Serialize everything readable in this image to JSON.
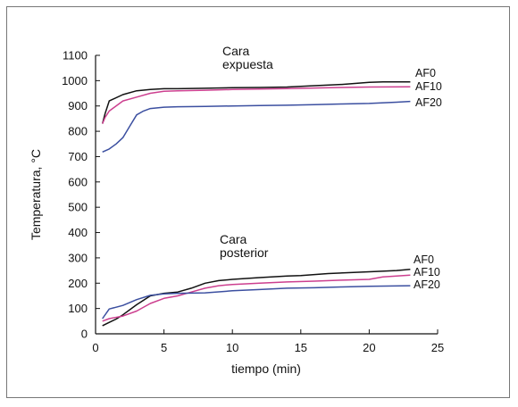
{
  "chart_data": {
    "type": "line",
    "title": "",
    "xlabel": "tiempo (min)",
    "ylabel": "Temperatura, °C",
    "xlim": [
      0,
      25
    ],
    "ylim": [
      0,
      1100
    ],
    "xticks": [
      0,
      5,
      10,
      15,
      20,
      25
    ],
    "yticks": [
      0,
      100,
      200,
      300,
      400,
      500,
      600,
      700,
      800,
      900,
      1000,
      1100
    ],
    "grid": false,
    "legend": "inline labels at line ends",
    "annotations": [
      {
        "lines": [
          "Cara",
          "expuesta"
        ],
        "group": "exposed"
      },
      {
        "lines": [
          "Cara",
          "posterior"
        ],
        "group": "posterior"
      }
    ],
    "series": [
      {
        "name": "AF0",
        "group": "exposed",
        "color": "#111111",
        "points": [
          [
            0.5,
            830
          ],
          [
            0.7,
            870
          ],
          [
            1,
            920
          ],
          [
            2,
            945
          ],
          [
            3,
            960
          ],
          [
            4,
            965
          ],
          [
            5,
            968
          ],
          [
            6,
            968
          ],
          [
            8,
            970
          ],
          [
            10,
            972
          ],
          [
            12,
            973
          ],
          [
            14,
            975
          ],
          [
            16,
            980
          ],
          [
            18,
            985
          ],
          [
            20,
            993
          ],
          [
            21,
            995
          ],
          [
            23,
            995
          ]
        ]
      },
      {
        "name": "AF10",
        "group": "exposed",
        "color": "#cc3f8f",
        "points": [
          [
            0.5,
            830
          ],
          [
            0.7,
            855
          ],
          [
            1,
            880
          ],
          [
            2,
            920
          ],
          [
            3,
            935
          ],
          [
            4,
            950
          ],
          [
            5,
            958
          ],
          [
            6,
            960
          ],
          [
            8,
            962
          ],
          [
            10,
            965
          ],
          [
            12,
            967
          ],
          [
            14,
            969
          ],
          [
            16,
            971
          ],
          [
            18,
            973
          ],
          [
            20,
            975
          ],
          [
            23,
            976
          ]
        ]
      },
      {
        "name": "AF20",
        "group": "exposed",
        "color": "#3b4fa0",
        "points": [
          [
            0.5,
            718
          ],
          [
            1,
            730
          ],
          [
            1.5,
            750
          ],
          [
            2,
            775
          ],
          [
            2.5,
            820
          ],
          [
            3,
            865
          ],
          [
            3.5,
            880
          ],
          [
            4,
            890
          ],
          [
            5,
            895
          ],
          [
            6,
            897
          ],
          [
            8,
            898
          ],
          [
            10,
            900
          ],
          [
            12,
            902
          ],
          [
            14,
            903
          ],
          [
            16,
            905
          ],
          [
            18,
            908
          ],
          [
            20,
            910
          ],
          [
            22,
            915
          ],
          [
            23,
            918
          ]
        ]
      },
      {
        "name": "AF0",
        "group": "posterior",
        "color": "#111111",
        "points": [
          [
            0.5,
            32
          ],
          [
            1,
            45
          ],
          [
            1.5,
            58
          ],
          [
            2,
            75
          ],
          [
            3,
            115
          ],
          [
            4,
            150
          ],
          [
            5,
            160
          ],
          [
            6,
            165
          ],
          [
            7,
            180
          ],
          [
            8,
            200
          ],
          [
            9,
            210
          ],
          [
            10,
            215
          ],
          [
            12,
            222
          ],
          [
            14,
            228
          ],
          [
            15,
            230
          ],
          [
            17,
            238
          ],
          [
            20,
            245
          ],
          [
            22,
            250
          ],
          [
            23,
            255
          ]
        ]
      },
      {
        "name": "AF10",
        "group": "posterior",
        "color": "#cc3f8f",
        "points": [
          [
            0.5,
            50
          ],
          [
            1,
            60
          ],
          [
            2,
            70
          ],
          [
            3,
            90
          ],
          [
            4,
            120
          ],
          [
            5,
            140
          ],
          [
            6,
            150
          ],
          [
            7,
            165
          ],
          [
            8,
            180
          ],
          [
            9,
            190
          ],
          [
            10,
            195
          ],
          [
            12,
            200
          ],
          [
            14,
            205
          ],
          [
            16,
            208
          ],
          [
            18,
            212
          ],
          [
            20,
            215
          ],
          [
            21,
            225
          ],
          [
            23,
            232
          ]
        ]
      },
      {
        "name": "AF20",
        "group": "posterior",
        "color": "#3b4fa0",
        "points": [
          [
            0.5,
            60
          ],
          [
            1,
            98
          ],
          [
            2,
            112
          ],
          [
            3,
            135
          ],
          [
            4,
            152
          ],
          [
            5,
            158
          ],
          [
            6,
            160
          ],
          [
            8,
            162
          ],
          [
            10,
            170
          ],
          [
            12,
            175
          ],
          [
            14,
            180
          ],
          [
            16,
            182
          ],
          [
            18,
            185
          ],
          [
            20,
            188
          ],
          [
            23,
            190
          ]
        ]
      }
    ]
  }
}
